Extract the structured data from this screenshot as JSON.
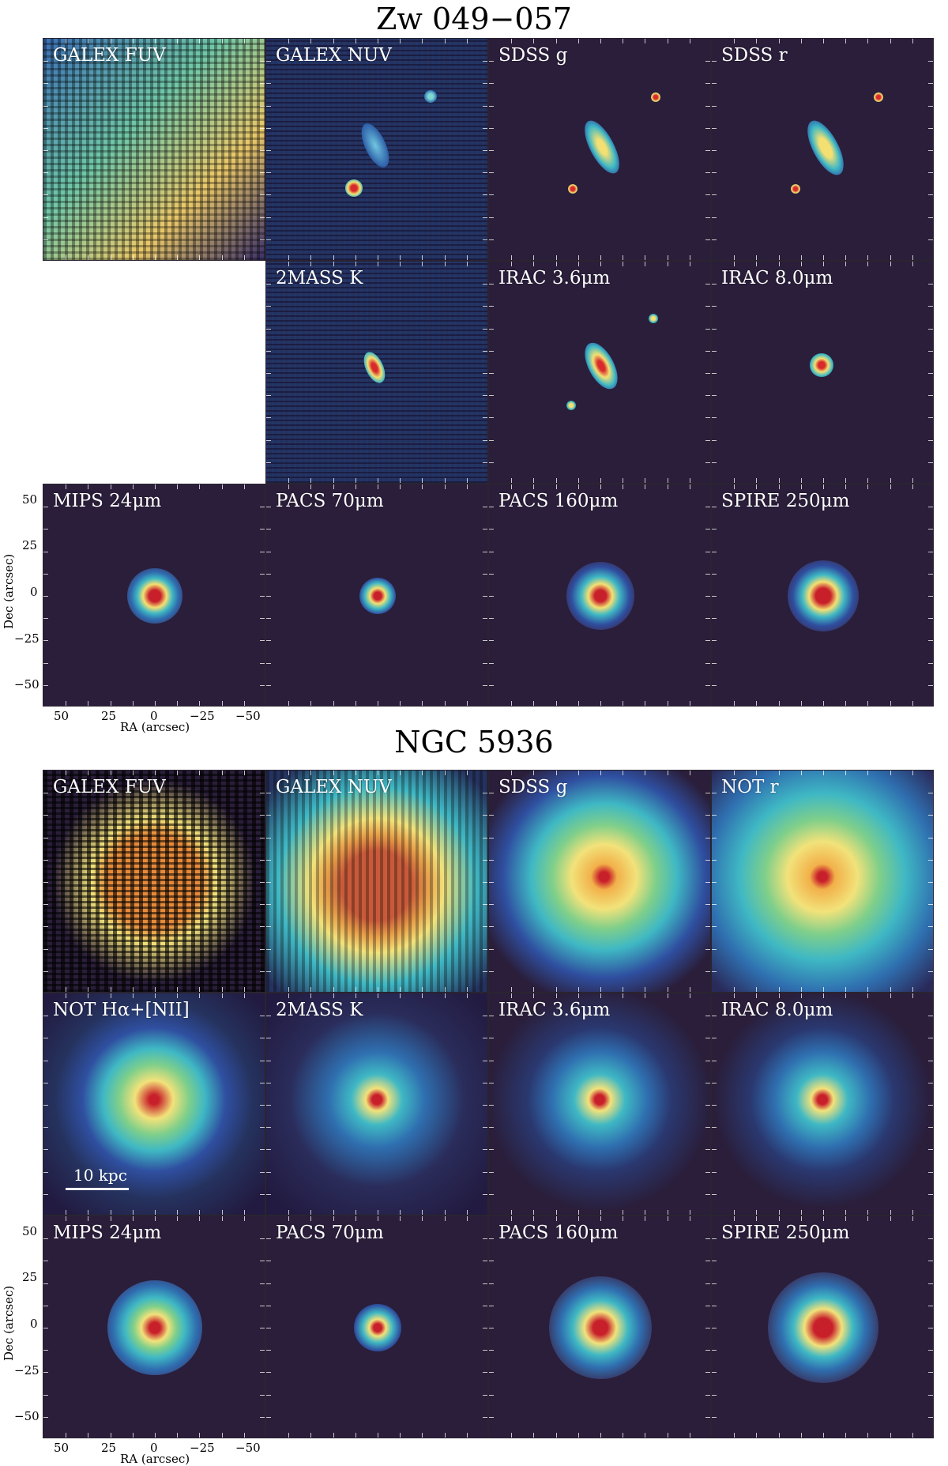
{
  "galaxies": [
    {
      "name": "Zw 049−057",
      "rows": [
        [
          "GALEX FUV",
          "GALEX NUV",
          "SDSS g",
          "SDSS r"
        ],
        [
          "",
          "2MASS K",
          "IRAC 3.6μm",
          "IRAC 8.0μm"
        ],
        [
          "MIPS 24μm",
          "PACS 70μm",
          "PACS 160μm",
          "SPIRE 250μm"
        ]
      ]
    },
    {
      "name": "NGC 5936",
      "rows": [
        [
          "GALEX FUV",
          "GALEX NUV",
          "SDSS g",
          "NOT r"
        ],
        [
          "NOT Hα+[NII]",
          "2MASS K",
          "IRAC 3.6μm",
          "IRAC 8.0μm"
        ],
        [
          "MIPS 24μm",
          "PACS 70μm",
          "PACS 160μm",
          "SPIRE 250μm"
        ]
      ]
    }
  ],
  "axes": {
    "xlabel": "RA (arcsec)",
    "ylabel": "Dec (arcsec)",
    "xticks": [
      "50",
      "25",
      "0",
      "−25",
      "−50"
    ],
    "yticks": [
      "50",
      "25",
      "0",
      "−25",
      "−50"
    ]
  },
  "scalebar": {
    "label": "10 kpc"
  },
  "colors": {
    "background_dark": "#2a1e3a",
    "core_red": "#c8202a",
    "mid_yellow": "#f2e27a",
    "mid_cyan": "#3fb8c4",
    "outer_blue": "#2f4fa0"
  }
}
